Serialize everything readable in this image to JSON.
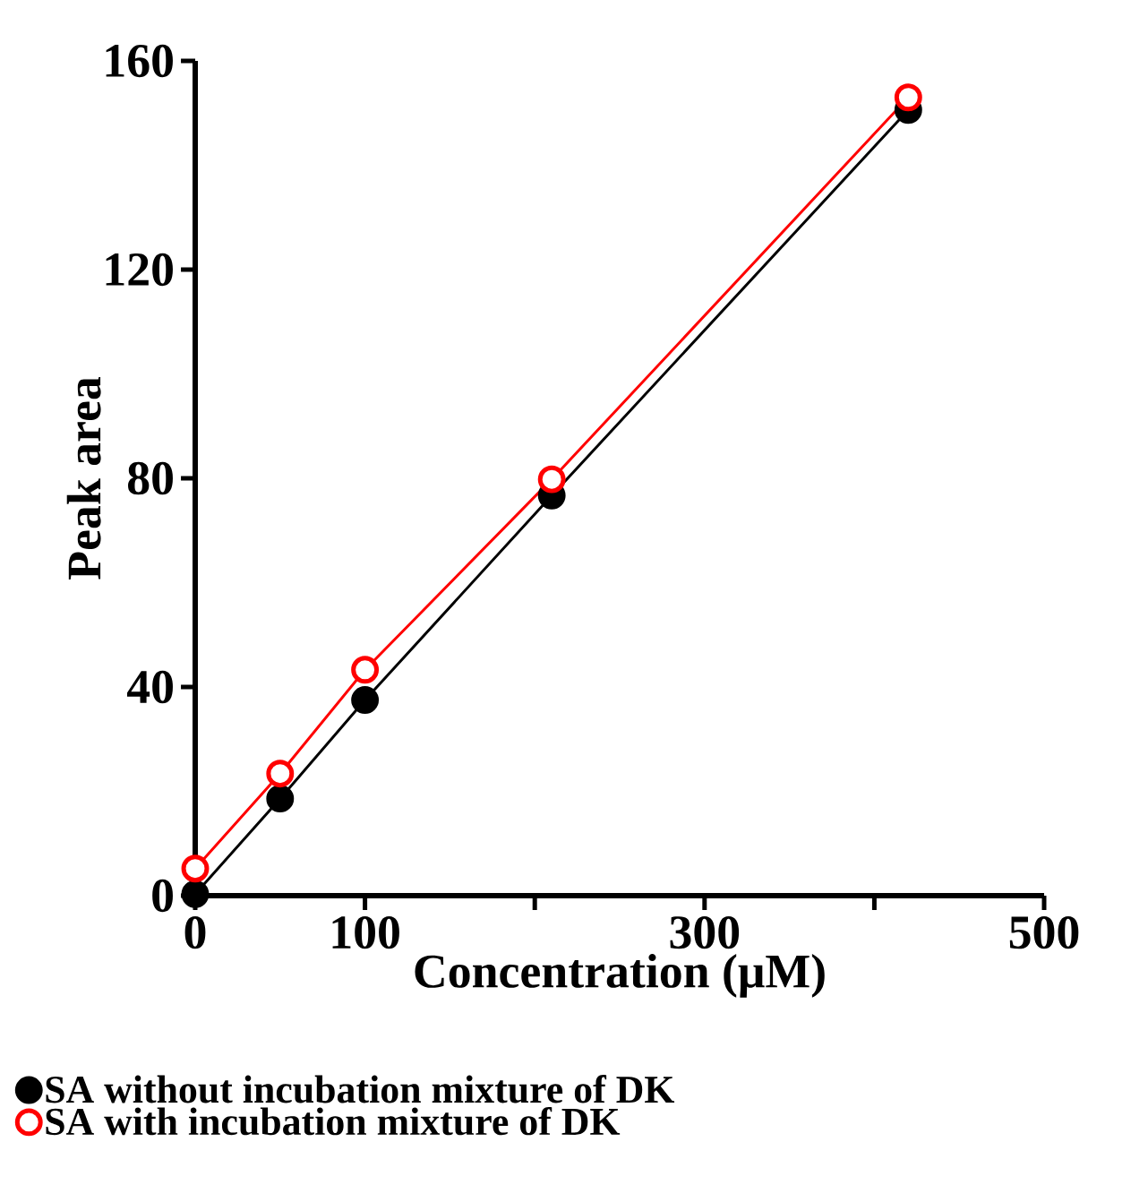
{
  "chart_data": {
    "type": "line",
    "xlabel": "Concentration (μM)",
    "ylabel": "Peak area",
    "x": [
      0,
      50,
      100,
      210,
      420
    ],
    "series": [
      {
        "name": "SA without incubation mixture of DK",
        "color": "#000000",
        "values": [
          0.3,
          18.6,
          37.5,
          76.7,
          150.6
        ]
      },
      {
        "name": "SA with incubation mixture of DK",
        "color": "#ff0000",
        "values": [
          5.2,
          23.4,
          43.3,
          79.8,
          153
        ]
      }
    ],
    "xlim": [
      0,
      500
    ],
    "ylim": [
      0,
      160
    ],
    "xticks": [
      0,
      100,
      {
        "value": 200,
        "label": null
      },
      300,
      {
        "value": 400,
        "label": null
      },
      500
    ],
    "yticks": [
      0,
      40,
      80,
      120,
      160
    ],
    "marker": "circle",
    "line_style": "solid",
    "legend": "bottom",
    "grid": false
  }
}
